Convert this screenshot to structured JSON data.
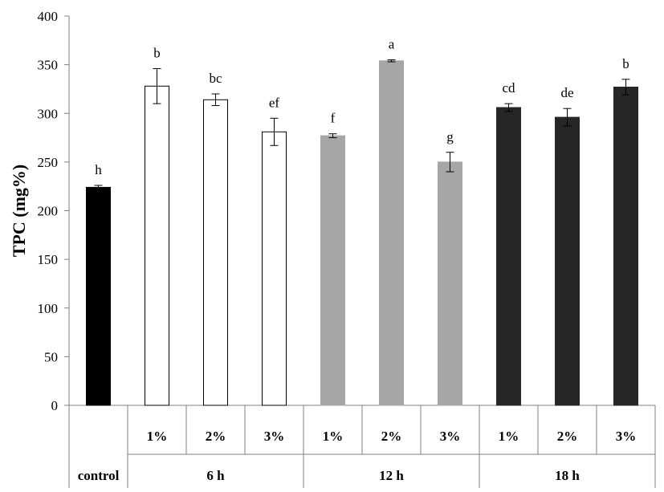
{
  "chart_data": {
    "type": "bar",
    "title": "",
    "xlabel": "",
    "ylabel": "TPC (mg%)",
    "ylim": [
      0,
      400
    ],
    "yticks": [
      0,
      50,
      100,
      150,
      200,
      250,
      300,
      350,
      400
    ],
    "grid": false,
    "legend": "none",
    "categories": [
      "control",
      "1%",
      "2%",
      "3%",
      "1%",
      "2%",
      "3%",
      "1%",
      "2%",
      "3%"
    ],
    "groups": [
      {
        "label": "control",
        "count": 1
      },
      {
        "label": "6 h",
        "count": 3
      },
      {
        "label": "12 h",
        "count": 3
      },
      {
        "label": "18 h",
        "count": 3
      }
    ],
    "values": [
      224,
      328,
      314,
      281,
      277,
      354,
      250,
      306,
      296,
      327
    ],
    "errors": [
      2,
      18,
      6,
      14,
      2,
      1,
      10,
      4,
      9,
      8
    ],
    "letters": [
      "h",
      "b",
      "bc",
      "ef",
      "f",
      "a",
      "g",
      "cd",
      "de",
      "b"
    ],
    "fills": [
      "#000000",
      "#ffffff",
      "#ffffff",
      "#ffffff",
      "#a6a6a6",
      "#a6a6a6",
      "#a6a6a6",
      "#262626",
      "#262626",
      "#262626"
    ],
    "strokes": [
      "#000000",
      "#000000",
      "#000000",
      "#000000",
      "#a6a6a6",
      "#a6a6a6",
      "#a6a6a6",
      "#262626",
      "#262626",
      "#262626"
    ]
  }
}
